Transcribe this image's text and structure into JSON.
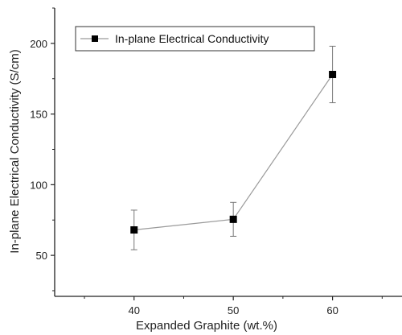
{
  "chart_data": {
    "type": "line",
    "title": "",
    "xlabel": "Expanded Graphite (wt.%)",
    "ylabel": "In-plane Electrical Conductivity (S/cm)",
    "x": [
      40,
      50,
      60
    ],
    "xlim": [
      32,
      67
    ],
    "ylim": [
      21,
      225
    ],
    "xticks": [
      40,
      50,
      60
    ],
    "yticks": [
      50,
      100,
      150,
      200
    ],
    "xtick_labels": [
      "40",
      "50",
      "60"
    ],
    "ytick_labels": [
      "50",
      "100",
      "150",
      "200"
    ],
    "grid": false,
    "legend_position": "top-left",
    "series": [
      {
        "name": "In-plane Electrical Conductivity",
        "values": [
          68,
          75.5,
          178
        ],
        "error": [
          14,
          12,
          20
        ],
        "marker": "square",
        "color": "#000000",
        "line_color": "#9a9a9a"
      }
    ]
  }
}
